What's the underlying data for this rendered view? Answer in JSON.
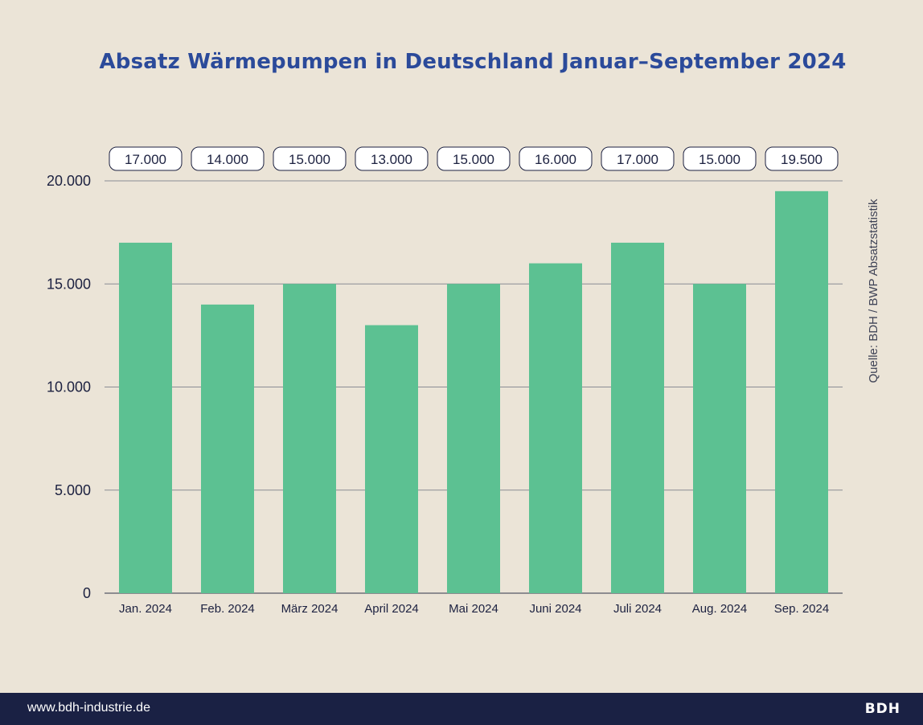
{
  "chart_data": {
    "type": "bar",
    "title": "Absatz Wärmepumpen in Deutschland Januar–September 2024",
    "categories": [
      "Jan. 2024",
      "Feb. 2024",
      "März 2024",
      "April 2024",
      "Mai 2024",
      "Juni 2024",
      "Juli 2024",
      "Aug. 2024",
      "Sep. 2024"
    ],
    "values": [
      17000,
      14000,
      15000,
      13000,
      15000,
      16000,
      17000,
      15000,
      19500
    ],
    "value_labels": [
      "17.000",
      "14.000",
      "15.000",
      "13.000",
      "15.000",
      "16.000",
      "17.000",
      "15.000",
      "19.500"
    ],
    "ylim": [
      0,
      20000
    ],
    "yticks": [
      0,
      5000,
      10000,
      15000,
      20000
    ],
    "ytick_labels": [
      "0",
      "5.000",
      "10.000",
      "15.000",
      "20.000"
    ],
    "grid": true,
    "bar_color": "#5cc192",
    "title_color": "#2b4a9a",
    "source": "Quelle: BDH / BWP Absatzstatistik"
  },
  "footer": {
    "url": "www.bdh-industrie.de",
    "logo": "BDH"
  }
}
